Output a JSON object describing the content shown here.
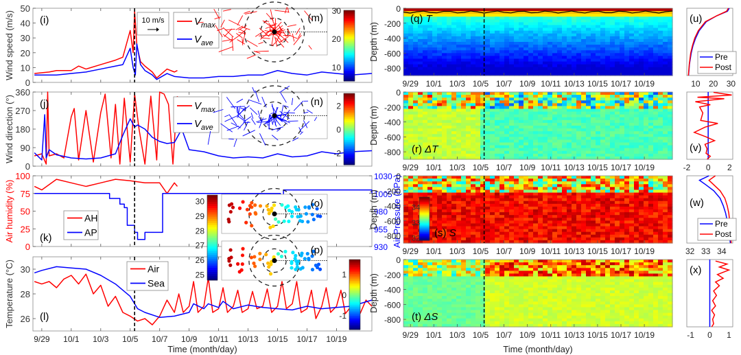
{
  "figure": {
    "storm_marker_date": "10/4.3",
    "xlabel": "Time (month/day)",
    "xticks": [
      "9/29",
      "10/1",
      "10/3",
      "10/5",
      "10/7",
      "10/9",
      "10/11",
      "10/13",
      "10/15",
      "10/17",
      "10/19"
    ]
  },
  "chart_data": [
    {
      "id": "i",
      "type": "line",
      "label": "(i)",
      "ylabel": "Wind speed (m/s)",
      "ylim": [
        0,
        50
      ],
      "yticks": [
        0,
        10,
        20,
        30,
        40,
        50
      ],
      "xlim_days": [
        -2.6,
        20.4
      ],
      "series": [
        {
          "name": "V_max",
          "color": "#ff0000",
          "x": [
            -2.5,
            -1.5,
            -1,
            0,
            0.5,
            1,
            2,
            3,
            3.5,
            4,
            4.2,
            4.3,
            4.45,
            4.7,
            5,
            5.5,
            5.8,
            6.5,
            7,
            7.2
          ],
          "y": [
            6,
            7,
            8,
            8,
            11,
            9,
            12,
            15,
            17,
            35,
            20,
            48,
            25,
            14,
            11,
            7,
            3,
            9,
            7,
            8
          ]
        },
        {
          "name": "V_ave",
          "color": "#0000ff",
          "x": [
            -2.5,
            -1,
            0,
            1,
            2,
            3,
            3.5,
            4,
            4.2,
            4.35,
            4.45,
            4.7,
            5,
            5.5,
            5.8,
            6.5,
            7,
            8,
            9,
            10,
            11,
            12,
            13,
            14,
            15,
            16,
            17,
            18,
            19,
            20.4
          ],
          "y": [
            5,
            5,
            6,
            7,
            9,
            11,
            12,
            23,
            10,
            5,
            26,
            12,
            8,
            5,
            2,
            6,
            4,
            3,
            3,
            4,
            4,
            5,
            5,
            8,
            6,
            5,
            7,
            6,
            5,
            6
          ]
        }
      ],
      "legend": [
        "V_max",
        "V_ave"
      ],
      "scale_arrow_label": "10 m/s",
      "inset": {
        "label": "(m)",
        "colorbar": {
          "ticks": [
            10,
            20,
            30
          ],
          "range": [
            5,
            30
          ]
        }
      }
    },
    {
      "id": "j",
      "type": "line",
      "label": "(j)",
      "ylabel": "Wind direction (°)",
      "ylim": [
        0,
        360
      ],
      "yticks": [
        0,
        90,
        180,
        270,
        360
      ],
      "series": [
        {
          "name": "V_max",
          "color": "#ff0000",
          "x": [
            -2.5,
            -2,
            -1.7,
            -1.6,
            -1.5,
            -1,
            -0.5,
            0,
            0.2,
            0.5,
            1,
            1.5,
            2,
            2.3,
            2.7,
            3,
            3.3,
            3.6,
            4,
            4.3,
            4.6,
            5,
            5.4,
            5.8,
            6,
            6.3,
            6.6,
            6.9,
            7.2
          ],
          "y": [
            50,
            60,
            10,
            360,
            50,
            60,
            40,
            240,
            280,
            30,
            270,
            20,
            260,
            350,
            40,
            300,
            10,
            330,
            20,
            350,
            180,
            10,
            340,
            30,
            360,
            350,
            300,
            10,
            340
          ]
        },
        {
          "name": "V_ave",
          "color": "#0000ff",
          "x": [
            -2.5,
            -2,
            -1.8,
            -1.7,
            -1.5,
            -1,
            0,
            1,
            2,
            3,
            3.5,
            4,
            4.3,
            4.5,
            5,
            5.5,
            6,
            6.5,
            7,
            7.5,
            8,
            9,
            10,
            11,
            12,
            13,
            14,
            15,
            16,
            17,
            18,
            19,
            20.4
          ],
          "y": [
            65,
            30,
            250,
            40,
            80,
            55,
            40,
            35,
            40,
            60,
            150,
            230,
            190,
            200,
            180,
            140,
            120,
            110,
            115,
            180,
            80,
            70,
            50,
            40,
            45,
            40,
            60,
            45,
            50,
            70,
            60,
            70,
            75
          ]
        }
      ],
      "legend": [
        "V_max",
        "V_ave"
      ],
      "inset": {
        "label": "(n)",
        "colorbar": {
          "ticks": [
            -2,
            0,
            2
          ],
          "range": [
            -3,
            3
          ]
        }
      }
    },
    {
      "id": "k",
      "type": "line",
      "label": "(k)",
      "ylabel": "Air humidity (%)",
      "ylim": [
        0,
        100
      ],
      "yticks": [
        0,
        25,
        50,
        75,
        100
      ],
      "ylabel_right": "Air Pressure (hPa)",
      "ylim_right": [
        930,
        1030
      ],
      "yticks_right": [
        930,
        955,
        980,
        1005,
        1030
      ],
      "series": [
        {
          "name": "AH",
          "color": "#ff0000",
          "axis": "left",
          "x": [
            -2.5,
            -2,
            -1,
            0,
            1,
            2,
            3,
            4,
            5,
            6,
            6.5,
            7,
            7.2
          ],
          "y": [
            85,
            80,
            95,
            90,
            85,
            90,
            95,
            93,
            90,
            90,
            75,
            90,
            85
          ]
        },
        {
          "name": "AP",
          "color": "#0000ff",
          "axis": "right",
          "x": [
            -2.5,
            2.3,
            2.6,
            3.3,
            3.6,
            3.8,
            4.3,
            4.5,
            5,
            6,
            6.2,
            13.8,
            14.2,
            14.4,
            15,
            16,
            20.4
          ],
          "y": [
            1005,
            1005,
            998,
            990,
            985,
            960,
            950,
            940,
            950,
            950,
            1005,
            1005,
            1003,
            1010,
            1010,
            1010,
            1005
          ]
        }
      ],
      "legend": [
        "AH",
        "AP"
      ],
      "inset": {
        "labels": [
          "(o)",
          "(p)"
        ],
        "colorbar": {
          "ticks": [
            25,
            26,
            27,
            28,
            29,
            30
          ],
          "range": [
            24.6,
            30.4
          ]
        }
      }
    },
    {
      "id": "l",
      "type": "line",
      "label": "(l)",
      "ylabel": "Temperature (°C)",
      "ylim": [
        25,
        31
      ],
      "yticks": [
        26,
        28,
        30
      ],
      "series": [
        {
          "name": "Air",
          "color": "#ff0000",
          "x": [
            -2.5,
            -2,
            -1.5,
            -1,
            -0.5,
            0,
            0.5,
            1,
            1.5,
            2,
            2.5,
            3,
            3.5,
            4,
            4.5,
            5,
            5.5,
            6,
            6.5,
            7,
            7.3,
            7.6,
            8,
            8.3,
            8.6,
            9,
            9.3,
            9.6,
            10,
            10.3,
            10.6,
            11,
            11.3,
            11.6,
            12,
            12.3,
            12.6,
            13,
            13.3,
            13.6,
            14,
            14.3,
            14.6,
            15,
            15.3,
            15.6,
            16,
            16.3,
            16.6,
            17,
            17.3,
            17.6,
            18,
            18.3,
            18.6,
            19,
            19.3,
            19.6,
            20,
            20.4
          ],
          "y": [
            29,
            28.8,
            29,
            28.5,
            29.2,
            29.5,
            28.8,
            29.6,
            28,
            28.7,
            27,
            27.8,
            26.5,
            26.2,
            25.8,
            26,
            25.5,
            26.2,
            27.5,
            26.5,
            28,
            26.5,
            27,
            29,
            26.5,
            27,
            29.3,
            26.5,
            26.8,
            28.5,
            26.5,
            27,
            28.3,
            26.5,
            26.8,
            28.2,
            26.8,
            27,
            28.4,
            26.5,
            27,
            29,
            26.8,
            27.2,
            29,
            26.5,
            26.8,
            28.3,
            26,
            27,
            28.5,
            26.5,
            27,
            28.3,
            26.4,
            27,
            28.4,
            26.4,
            27.5,
            27
          ]
        },
        {
          "name": "Sea",
          "color": "#0000ff",
          "x": [
            -2.5,
            -2,
            -1,
            0,
            1,
            2,
            3,
            4,
            4.5,
            5,
            6,
            7,
            8,
            8.3,
            9,
            9.3,
            10,
            10.3,
            11,
            12,
            13,
            14,
            15,
            16,
            17,
            18,
            19,
            20.4
          ],
          "y": [
            29.7,
            29.9,
            30.2,
            30.1,
            30,
            29.5,
            28.8,
            27.8,
            26.8,
            26.5,
            26.1,
            26.2,
            26.5,
            27.2,
            26.8,
            27.2,
            26.9,
            27.4,
            26.8,
            27.1,
            26.9,
            26.8,
            26.7,
            27,
            26.8,
            26.9,
            27,
            27.5
          ]
        }
      ],
      "legend": [
        "Air",
        "Sea"
      ],
      "colorbar": {
        "ticks": [
          -1,
          0,
          1
        ],
        "range": [
          -1.7,
          1.7
        ]
      }
    },
    {
      "id": "q",
      "type": "heatmap",
      "label": "(q) T",
      "ylabel": "Depth (m)",
      "ylim": [
        -900,
        0
      ],
      "yticks": [
        0,
        -200,
        -400,
        -600,
        -800
      ],
      "variable": "Temperature",
      "color_range": [
        5,
        30
      ],
      "mixed_layer_line": "black"
    },
    {
      "id": "r",
      "type": "heatmap",
      "label": "(r) ΔT",
      "ylabel": "Depth (m)",
      "ylim": [
        -900,
        0
      ],
      "yticks": [
        0,
        -200,
        -400,
        -600,
        -800
      ],
      "variable": "Temperature anomaly",
      "color_range": [
        -3,
        3
      ]
    },
    {
      "id": "s",
      "type": "heatmap",
      "label": "(s) S",
      "ylabel": "Depth (m)",
      "ylim": [
        -900,
        0
      ],
      "yticks": [
        0,
        -200,
        -400,
        -600,
        -800
      ],
      "variable": "Salinity",
      "color_range": [
        31.8,
        34.6
      ],
      "inner_colorbar": {
        "ticks": [
          32,
          33,
          34
        ]
      }
    },
    {
      "id": "t",
      "type": "heatmap",
      "label": "(t) ΔS",
      "ylabel": "Depth (m)",
      "ylim": [
        -900,
        0
      ],
      "yticks": [
        0,
        -200,
        -400,
        -600,
        -800
      ],
      "variable": "Salinity anomaly",
      "color_range": [
        -1.7,
        1.7
      ]
    },
    {
      "id": "u",
      "type": "line",
      "label": "(u)",
      "xlim": [
        5,
        31
      ],
      "xticks": [
        10,
        20,
        30
      ],
      "legend": [
        "Pre",
        "Post"
      ],
      "series": [
        {
          "name": "Pre",
          "color": "#0000ff",
          "x": [
            29,
            28,
            22,
            16,
            12,
            10,
            8.5,
            7.5,
            6.5,
            6
          ],
          "depth": [
            0,
            -40,
            -100,
            -180,
            -300,
            -400,
            -500,
            -600,
            -750,
            -900
          ]
        },
        {
          "name": "Post",
          "color": "#ff0000",
          "x": [
            28.5,
            27.5,
            22,
            15.5,
            11.5,
            9.5,
            8.2,
            7.2,
            6.4,
            5.9
          ],
          "depth": [
            0,
            -40,
            -100,
            -180,
            -300,
            -400,
            -500,
            -600,
            -750,
            -900
          ]
        }
      ]
    },
    {
      "id": "v",
      "type": "line",
      "label": "(v)",
      "xlim": [
        -2,
        2.3
      ],
      "xticks": [
        -2,
        0,
        2
      ],
      "series": [
        {
          "name": "Pre",
          "color": "#0000ff",
          "x": [
            0,
            0
          ],
          "depth": [
            0,
            -900
          ]
        },
        {
          "name": "Post",
          "color": "#ff0000",
          "x": [
            0.5,
            2.2,
            -1,
            1.5,
            -1.2,
            0.2,
            -0.8,
            -0.5,
            -0.7,
            0.9,
            -0.3,
            -1.3,
            -0.2,
            0.6,
            -0.3,
            -0.1,
            -0.2,
            0.2,
            -0.1
          ],
          "depth": [
            -5,
            -40,
            -70,
            -90,
            -130,
            -170,
            -200,
            -280,
            -380,
            -420,
            -470,
            -540,
            -600,
            -650,
            -700,
            -760,
            -820,
            -860,
            -900
          ]
        }
      ]
    },
    {
      "id": "w",
      "type": "line",
      "label": "(w)",
      "xlim": [
        31.8,
        34.7
      ],
      "xticks": [
        32,
        33,
        34
      ],
      "legend": [
        "Pre",
        "Post"
      ],
      "series": [
        {
          "name": "Pre",
          "color": "#0000ff",
          "x": [
            33.2,
            32.6,
            33.0,
            33.5,
            33.9,
            34.1,
            34.25,
            34.35,
            34.45,
            34.55
          ],
          "depth": [
            0,
            -60,
            -120,
            -200,
            -300,
            -400,
            -500,
            -600,
            -750,
            -900
          ]
        },
        {
          "name": "Post",
          "color": "#ff0000",
          "x": [
            33.6,
            33.2,
            33.5,
            33.9,
            34.2,
            34.35,
            34.45,
            34.5,
            34.55,
            34.6
          ],
          "depth": [
            0,
            -60,
            -120,
            -200,
            -300,
            -400,
            -500,
            -600,
            -750,
            -900
          ]
        }
      ]
    },
    {
      "id": "x",
      "type": "line",
      "label": "(x)",
      "xlim": [
        -1.2,
        1.2
      ],
      "xticks": [
        -1,
        0,
        1
      ],
      "series": [
        {
          "name": "Pre",
          "color": "#0000ff",
          "x": [
            0,
            0
          ],
          "depth": [
            0,
            -900
          ]
        },
        {
          "name": "Post",
          "color": "#ff0000",
          "x": [
            0.3,
            0.9,
            0.5,
            1.0,
            0.4,
            0.7,
            0.3,
            0.5,
            0.2,
            0.35,
            0.15,
            0.3,
            0.1,
            0.25,
            0.15,
            0.2,
            0.1
          ],
          "depth": [
            -20,
            -60,
            -100,
            -140,
            -200,
            -250,
            -300,
            -350,
            -420,
            -480,
            -550,
            -620,
            -680,
            -740,
            -800,
            -860,
            -900
          ]
        }
      ]
    }
  ]
}
